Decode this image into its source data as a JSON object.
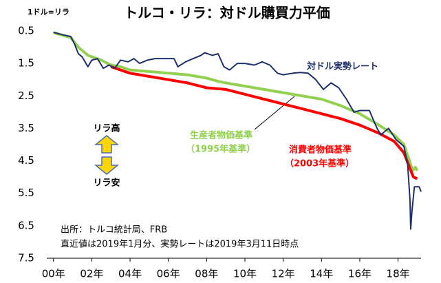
{
  "chart_data": {
    "type": "line",
    "title": "トルコ・リラ：対ドル購買力平価",
    "y_unit_label": "1ドル=リラ",
    "y_inverted": true,
    "ylim": [
      0.5,
      7.5
    ],
    "yticks": [
      0.5,
      1.5,
      2.5,
      3.5,
      4.5,
      5.5,
      6.5,
      7.5
    ],
    "xlim": [
      1999.65,
      2019.2
    ],
    "xticks": [
      {
        "value": 2000,
        "label": "00年"
      },
      {
        "value": 2002,
        "label": "02年"
      },
      {
        "value": 2004,
        "label": "04年"
      },
      {
        "value": 2006,
        "label": "06年"
      },
      {
        "value": 2008,
        "label": "08年"
      },
      {
        "value": 2010,
        "label": "10年"
      },
      {
        "value": 2012,
        "label": "12年"
      },
      {
        "value": 2014,
        "label": "14年"
      },
      {
        "value": 2016,
        "label": "16年"
      },
      {
        "value": 2018,
        "label": "18年"
      }
    ],
    "series": [
      {
        "name": "対ドル実勢レート",
        "color": "#1f2f6e",
        "x": [
          2000,
          2000.5,
          2000.9,
          2001.1,
          2001.3,
          2001.5,
          2001.8,
          2002.0,
          2002.3,
          2002.6,
          2002.9,
          2003.2,
          2003.5,
          2003.9,
          2004.2,
          2004.5,
          2004.9,
          2005.3,
          2005.8,
          2006.3,
          2006.5,
          2006.9,
          2007.3,
          2007.7,
          2007.9,
          2008.3,
          2008.6,
          2008.9,
          2009.2,
          2009.6,
          2010.0,
          2010.5,
          2010.9,
          2011.3,
          2011.7,
          2012.0,
          2012.5,
          2012.9,
          2013.3,
          2013.7,
          2014.1,
          2014.5,
          2014.9,
          2015.3,
          2015.7,
          2016.0,
          2016.5,
          2016.9,
          2017.1,
          2017.5,
          2017.9,
          2018.3,
          2018.5,
          2018.62,
          2018.66,
          2018.72,
          2018.85,
          2019.0,
          2019.1,
          2019.2
        ],
        "values": [
          0.54,
          0.62,
          0.67,
          0.9,
          1.2,
          1.3,
          1.6,
          1.4,
          1.35,
          1.65,
          1.55,
          1.65,
          1.4,
          1.45,
          1.35,
          1.5,
          1.4,
          1.35,
          1.35,
          1.35,
          1.6,
          1.45,
          1.35,
          1.25,
          1.17,
          1.25,
          1.2,
          1.6,
          1.7,
          1.5,
          1.5,
          1.55,
          1.45,
          1.55,
          1.8,
          1.85,
          1.8,
          1.78,
          1.8,
          2.0,
          2.3,
          2.1,
          2.25,
          2.6,
          3.0,
          2.95,
          2.95,
          3.5,
          3.7,
          3.5,
          3.85,
          4.05,
          4.6,
          5.7,
          6.6,
          6.1,
          5.3,
          5.3,
          5.3,
          5.45
        ]
      },
      {
        "name": "生産者物価基準",
        "sublabel": "（1995年基準）",
        "color": "#92d050",
        "x": [
          2000,
          2000.9,
          2001.3,
          2001.8,
          2002.5,
          2003.0,
          2003.5,
          2004,
          2005,
          2006,
          2007,
          2008,
          2008.6,
          2009,
          2010,
          2011,
          2012,
          2013,
          2014,
          2015,
          2016,
          2017,
          2017.8,
          2018.3,
          2018.6,
          2018.75,
          2018.9,
          2019.0
        ],
        "values": [
          0.55,
          0.7,
          1.0,
          1.25,
          1.4,
          1.55,
          1.6,
          1.7,
          1.75,
          1.8,
          1.85,
          1.95,
          2.05,
          2.1,
          2.2,
          2.3,
          2.4,
          2.5,
          2.6,
          2.8,
          3.05,
          3.4,
          3.7,
          4.0,
          4.5,
          4.8,
          4.7,
          4.8
        ]
      },
      {
        "name": "消費者物価基準",
        "sublabel": "（2003年基準）",
        "color": "#ff0000",
        "x": [
          2003.0,
          2004,
          2005,
          2006,
          2007,
          2008,
          2009,
          2010,
          2011,
          2012,
          2013,
          2014,
          2015,
          2016,
          2017,
          2017.8,
          2018.3,
          2018.6,
          2018.8,
          2019.0
        ],
        "values": [
          1.6,
          1.8,
          1.9,
          2.0,
          2.1,
          2.25,
          2.3,
          2.45,
          2.6,
          2.75,
          2.9,
          3.05,
          3.2,
          3.4,
          3.65,
          3.9,
          4.25,
          4.7,
          5.0,
          5.05
        ]
      }
    ],
    "annotations": {
      "up": "リラ高",
      "down": "リラ安"
    },
    "source": [
      "出所：トルコ統計局、FRB",
      "直近値は2019年1月分、実勢レートは2019年3月11日時点"
    ]
  }
}
